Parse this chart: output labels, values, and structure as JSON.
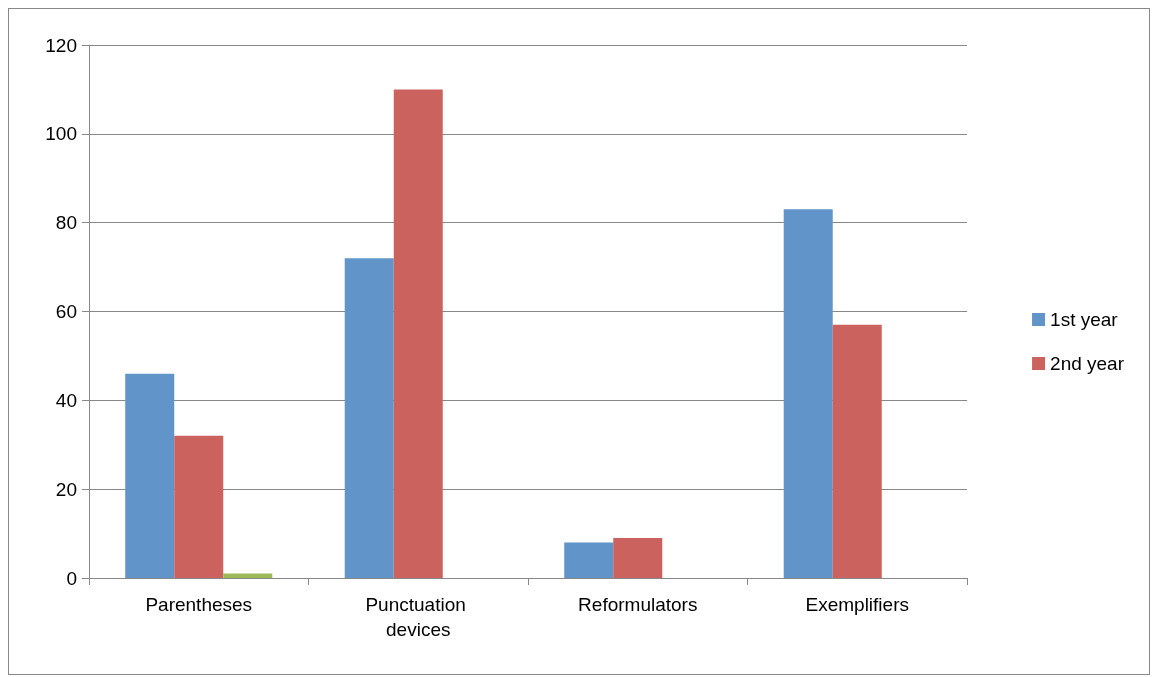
{
  "chart_data": {
    "type": "bar",
    "categories": [
      "Parentheses",
      "Punctuation devices",
      "Reformulators",
      "Exemplifiers"
    ],
    "series": [
      {
        "name": "1st year",
        "color": "#6194c9",
        "values": [
          46,
          72,
          8,
          83
        ]
      },
      {
        "name": "2nd year",
        "color": "#cc625e",
        "values": [
          32,
          110,
          9,
          57
        ]
      },
      {
        "color": "#9cbb58",
        "values": [
          1,
          null,
          null,
          null
        ]
      }
    ],
    "ylim": [
      0,
      120
    ],
    "yticks": [
      0,
      20,
      40,
      60,
      80,
      100,
      120
    ],
    "grid": "y",
    "legend": "right"
  }
}
